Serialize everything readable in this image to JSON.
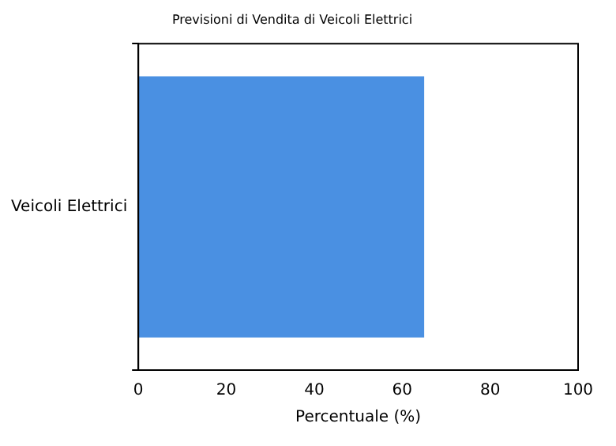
{
  "chart_data": {
    "type": "bar",
    "orientation": "horizontal",
    "title": "Previsioni di Vendita di Veicoli Elettrici",
    "xlabel": "Percentuale (%)",
    "categories": [
      "Veicoli Elettrici"
    ],
    "values": [
      65
    ],
    "color": "#4a90e2",
    "xlim": [
      0,
      100
    ],
    "xticks": [
      0,
      20,
      40,
      60,
      80,
      100
    ],
    "grid": false,
    "legend": false
  }
}
